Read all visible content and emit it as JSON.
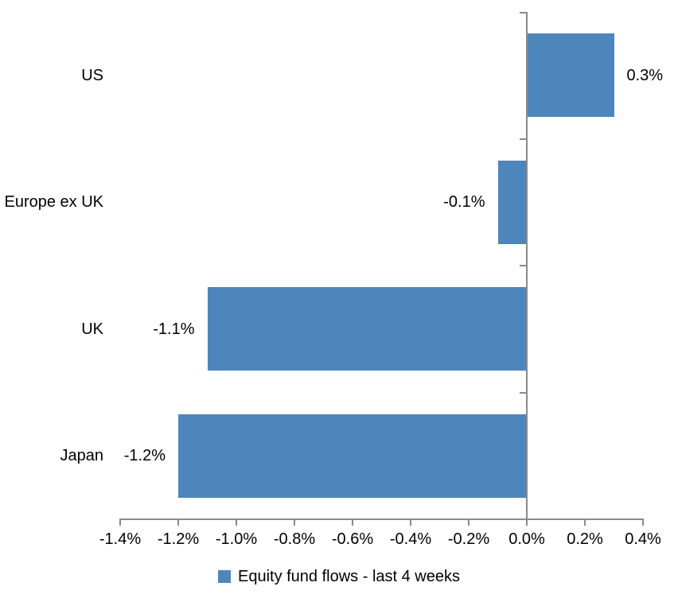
{
  "chart_data": {
    "type": "bar",
    "orientation": "horizontal",
    "title": "",
    "xlabel": "",
    "ylabel": "",
    "categories": [
      "US",
      "Europe ex UK",
      "UK",
      "Japan"
    ],
    "series": [
      {
        "name": "Equity fund flows - last 4 weeks",
        "values": [
          0.3,
          -0.1,
          -1.1,
          -1.2
        ],
        "data_labels": [
          "0.3%",
          "-0.1%",
          "-1.1%",
          "-1.2%"
        ],
        "color": "#4E86BC"
      }
    ],
    "xlim": [
      -1.4,
      0.4
    ],
    "x_ticks": [
      {
        "value": -1.4,
        "label": "-1.4%"
      },
      {
        "value": -1.2,
        "label": "-1.2%"
      },
      {
        "value": -1.0,
        "label": "-1.0%"
      },
      {
        "value": -0.8,
        "label": "-0.8%"
      },
      {
        "value": -0.6,
        "label": "-0.6%"
      },
      {
        "value": -0.4,
        "label": "-0.4%"
      },
      {
        "value": -0.2,
        "label": "-0.2%"
      },
      {
        "value": 0.0,
        "label": "0.0%"
      },
      {
        "value": 0.2,
        "label": "0.2%"
      },
      {
        "value": 0.4,
        "label": "0.4%"
      }
    ],
    "grid": false,
    "legend_position": "bottom",
    "data_label_position": "outside-end",
    "colors": {
      "bar": "#4E86BC",
      "axis": "#8A8A8A",
      "text": "#000000",
      "background": "#FFFFFF"
    }
  },
  "legend": {
    "label": "Equity fund flows - last 4 weeks",
    "marker": "legend-square-icon"
  }
}
